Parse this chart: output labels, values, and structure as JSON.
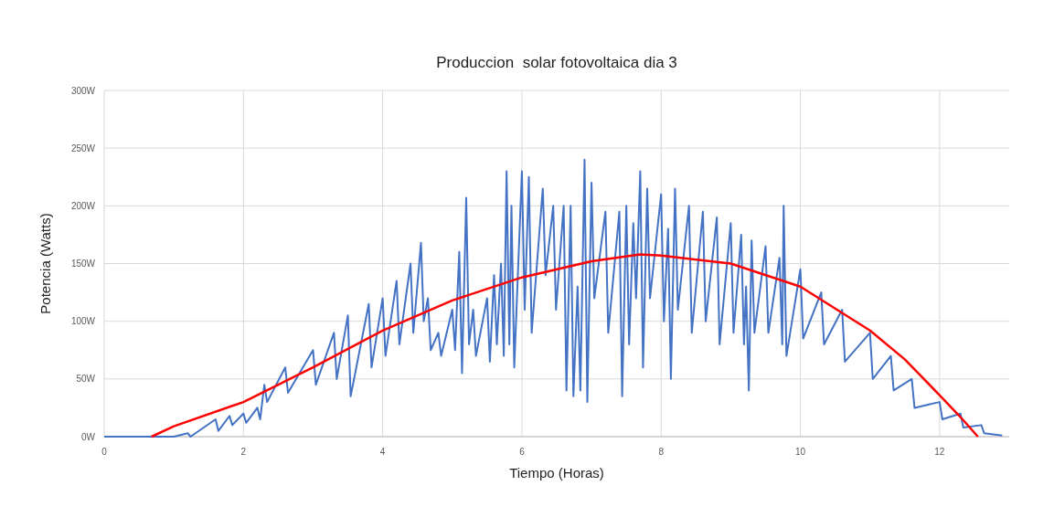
{
  "chart_data": {
    "type": "line",
    "title": "Produccion  solar fotovoltaica dia 3",
    "xlabel": "Tiempo (Horas)",
    "ylabel": "Potencia (Watts)",
    "xlim": [
      0,
      13
    ],
    "xticks": [
      0,
      2,
      4,
      6,
      8,
      10,
      12
    ],
    "ylim": [
      0,
      300
    ],
    "yticks": [
      {
        "value": 0,
        "label": "0W"
      },
      {
        "value": 50,
        "label": "50W"
      },
      {
        "value": 100,
        "label": "100W"
      },
      {
        "value": 150,
        "label": "150W"
      },
      {
        "value": 200,
        "label": "200W"
      },
      {
        "value": 250,
        "label": "250W"
      },
      {
        "value": 300,
        "label": "300W"
      }
    ],
    "grid": true,
    "marker": "none",
    "line_style": "solid",
    "series": [
      {
        "color": "#4472c4",
        "x": [
          0,
          1.0,
          1.2,
          1.24,
          1.6,
          1.64,
          1.8,
          1.84,
          2.0,
          2.04,
          2.2,
          2.24,
          2.3,
          2.34,
          2.6,
          2.64,
          3.0,
          3.04,
          3.3,
          3.34,
          3.5,
          3.54,
          3.8,
          3.84,
          4.0,
          4.04,
          4.2,
          4.24,
          4.4,
          4.44,
          4.55,
          4.59,
          4.65,
          4.69,
          4.8,
          4.84,
          5.0,
          5.04,
          5.1,
          5.14,
          5.2,
          5.24,
          5.3,
          5.34,
          5.5,
          5.54,
          5.6,
          5.64,
          5.7,
          5.74,
          5.78,
          5.82,
          5.85,
          5.89,
          6.0,
          6.04,
          6.1,
          6.14,
          6.3,
          6.34,
          6.45,
          6.49,
          6.6,
          6.64,
          6.7,
          6.74,
          6.8,
          6.84,
          6.9,
          6.94,
          7.0,
          7.04,
          7.2,
          7.24,
          7.4,
          7.44,
          7.5,
          7.54,
          7.6,
          7.64,
          7.7,
          7.74,
          7.8,
          7.84,
          8.0,
          8.04,
          8.1,
          8.14,
          8.2,
          8.24,
          8.4,
          8.44,
          8.6,
          8.64,
          8.8,
          8.84,
          9.0,
          9.04,
          9.15,
          9.19,
          9.22,
          9.26,
          9.3,
          9.34,
          9.5,
          9.54,
          9.7,
          9.74,
          9.76,
          9.8,
          10.0,
          10.04,
          10.3,
          10.34,
          10.6,
          10.64,
          11.0,
          11.04,
          11.3,
          11.34,
          11.6,
          11.64,
          12.0,
          12.04,
          12.3,
          12.34,
          12.6,
          12.64,
          12.9
        ],
        "values": [
          0,
          0,
          3,
          0,
          15,
          5,
          18,
          10,
          20,
          12,
          25,
          15,
          45,
          30,
          60,
          38,
          75,
          45,
          90,
          50,
          105,
          35,
          115,
          60,
          120,
          70,
          135,
          80,
          150,
          90,
          168,
          100,
          120,
          75,
          90,
          70,
          110,
          75,
          160,
          55,
          207,
          80,
          110,
          70,
          120,
          65,
          140,
          80,
          150,
          70,
          230,
          80,
          200,
          60,
          230,
          110,
          225,
          90,
          215,
          140,
          200,
          110,
          200,
          40,
          200,
          35,
          130,
          40,
          240,
          30,
          220,
          120,
          195,
          90,
          195,
          35,
          200,
          80,
          185,
          120,
          230,
          60,
          215,
          120,
          210,
          100,
          180,
          50,
          215,
          110,
          200,
          90,
          195,
          100,
          190,
          80,
          185,
          90,
          175,
          80,
          130,
          40,
          170,
          90,
          165,
          90,
          155,
          80,
          200,
          70,
          145,
          85,
          125,
          80,
          110,
          65,
          90,
          50,
          70,
          40,
          50,
          25,
          30,
          15,
          20,
          8,
          10,
          3,
          1
        ]
      },
      {
        "type": "line",
        "color": "#ff0000",
        "x": [
          0.68,
          1,
          2,
          3,
          4,
          5,
          6,
          7,
          7.7,
          8,
          9,
          10,
          11,
          11.5,
          12,
          12.3,
          12.55
        ],
        "values": [
          0,
          9,
          30,
          60,
          92,
          118,
          138,
          152,
          158,
          157,
          150,
          130,
          92,
          67,
          36,
          17,
          0
        ]
      }
    ]
  }
}
